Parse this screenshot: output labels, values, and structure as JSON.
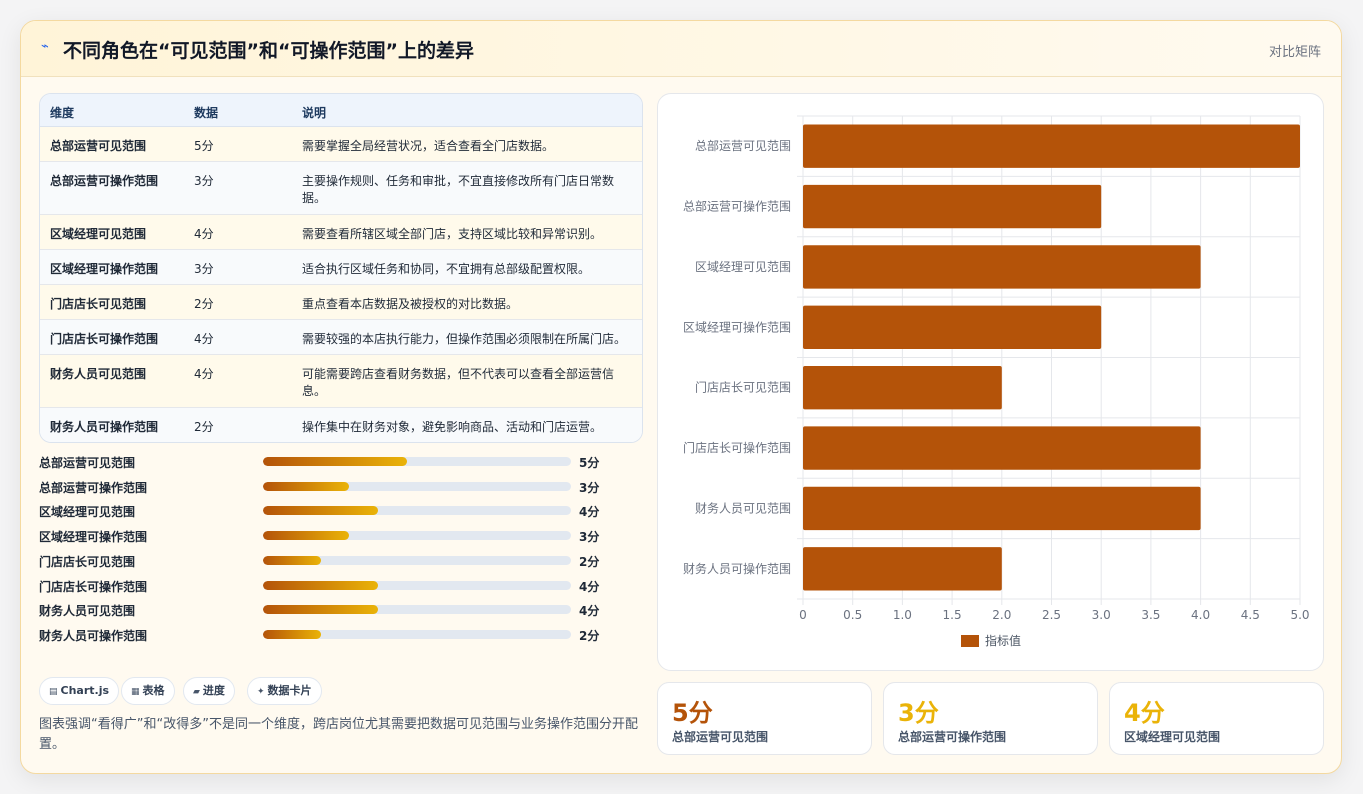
{
  "header": {
    "title": "不同角色在“可见范围”和“可操作范围”上的差异",
    "link": "对比矩阵"
  },
  "table": {
    "headers": [
      "维度",
      "数据",
      "说明"
    ],
    "rows": [
      {
        "dim": "总部运营可见范围",
        "val": "5分",
        "desc": "需要掌握全局经营状况，适合查看全门店数据。"
      },
      {
        "dim": "总部运营可操作范围",
        "val": "3分",
        "desc": "主要操作规则、任务和审批，不宜直接修改所有门店日常数据。"
      },
      {
        "dim": "区域经理可见范围",
        "val": "4分",
        "desc": "需要查看所辖区域全部门店，支持区域比较和异常识别。"
      },
      {
        "dim": "区域经理可操作范围",
        "val": "3分",
        "desc": "适合执行区域任务和协同，不宜拥有总部级配置权限。"
      },
      {
        "dim": "门店店长可见范围",
        "val": "2分",
        "desc": "重点查看本店数据及被授权的对比数据。"
      },
      {
        "dim": "门店店长可操作范围",
        "val": "4分",
        "desc": "需要较强的本店执行能力，但操作范围必须限制在所属门店。"
      },
      {
        "dim": "财务人员可见范围",
        "val": "4分",
        "desc": "可能需要跨店查看财务数据，但不代表可以查看全部运营信息。"
      },
      {
        "dim": "财务人员可操作范围",
        "val": "2分",
        "desc": "操作集中在财务对象，避免影响商品、活动和门店运营。"
      }
    ]
  },
  "progress": [
    {
      "label": "总部运营可见范围",
      "value": 5,
      "text": "5分"
    },
    {
      "label": "总部运营可操作范围",
      "value": 3,
      "text": "3分"
    },
    {
      "label": "区域经理可见范围",
      "value": 4,
      "text": "4分"
    },
    {
      "label": "区域经理可操作范围",
      "value": 3,
      "text": "3分"
    },
    {
      "label": "门店店长可见范围",
      "value": 2,
      "text": "2分"
    },
    {
      "label": "门店店长可操作范围",
      "value": 4,
      "text": "4分"
    },
    {
      "label": "财务人员可见范围",
      "value": 4,
      "text": "4分"
    },
    {
      "label": "财务人员可操作范围",
      "value": 2,
      "text": "2分"
    }
  ],
  "progress_max": 10.7,
  "tags": [
    {
      "icon": "chart-icon",
      "label": "Chart.js"
    },
    {
      "icon": "table-icon",
      "label": "表格"
    },
    {
      "icon": "progress-icon",
      "label": "进度"
    },
    {
      "icon": "sparkle-icon",
      "label": "数据卡片"
    }
  ],
  "note": "图表强调“看得广”和“改得多”不是同一个维度，跨店岗位尤其需要把数据可见范围与业务操作范围分开配置。",
  "stats": [
    {
      "value": "5分",
      "label": "总部运营可见范围",
      "color": "#b45309"
    },
    {
      "value": "3分",
      "label": "总部运营可操作范围",
      "color": "#eab308"
    },
    {
      "value": "4分",
      "label": "区域经理可见范围",
      "color": "#eab308"
    }
  ],
  "chart_data": {
    "type": "bar",
    "orientation": "horizontal",
    "categories": [
      "总部运营可见范围",
      "总部运营可操作范围",
      "区域经理可见范围",
      "区域经理可操作范围",
      "门店店长可见范围",
      "门店店长可操作范围",
      "财务人员可见范围",
      "财务人员可操作范围"
    ],
    "series": [
      {
        "name": "指标值",
        "values": [
          5,
          3,
          4,
          3,
          2,
          4,
          4,
          2
        ],
        "color": "#b45309"
      }
    ],
    "xlim": [
      0,
      5
    ],
    "xticks": [
      "0",
      "0.5",
      "1.0",
      "1.5",
      "2.0",
      "2.5",
      "3.0",
      "3.5",
      "4.0",
      "4.5",
      "5.0"
    ],
    "grid": true,
    "legend": "bottom"
  }
}
